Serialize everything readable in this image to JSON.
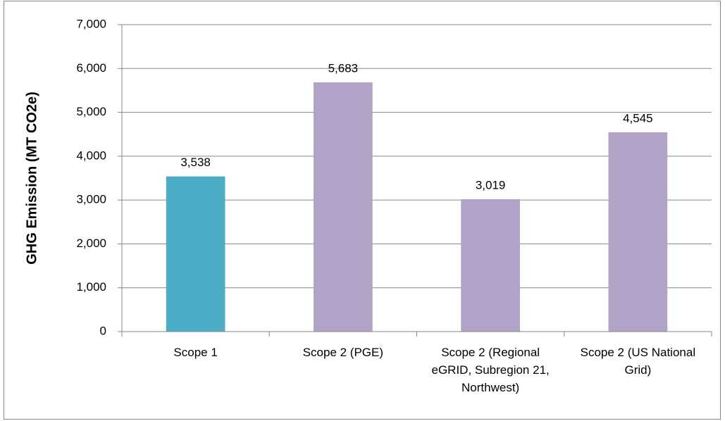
{
  "chart_data": {
    "type": "bar",
    "y_label": "GHG Emission (MT CO2e)",
    "categories": [
      "Scope 1",
      "Scope 2 (PGE)",
      "Scope 2 (Regional eGRID, Subregion 21, Northwest)",
      "Scope 2 (US National Grid)"
    ],
    "values": [
      3538,
      5683,
      3019,
      4545
    ],
    "value_labels": [
      "3,538",
      "5,683",
      "3,019",
      "4,545"
    ],
    "colors": [
      "#4bacc6",
      "#b2a2c7",
      "#b2a2c7",
      "#b2a2c7"
    ],
    "ylim": [
      0,
      7000
    ],
    "yticks": [
      0,
      {
        "value": 1000,
        "label": "1,000"
      },
      {
        "value": 2000,
        "label": "2,000"
      },
      {
        "value": 3000,
        "label": "3,000"
      },
      {
        "value": 4000,
        "label": "4,000"
      },
      {
        "value": 5000,
        "label": "5,000"
      },
      {
        "value": 6000,
        "label": "6,000"
      },
      {
        "value": 7000,
        "label": "7,000"
      }
    ],
    "grid": true
  }
}
